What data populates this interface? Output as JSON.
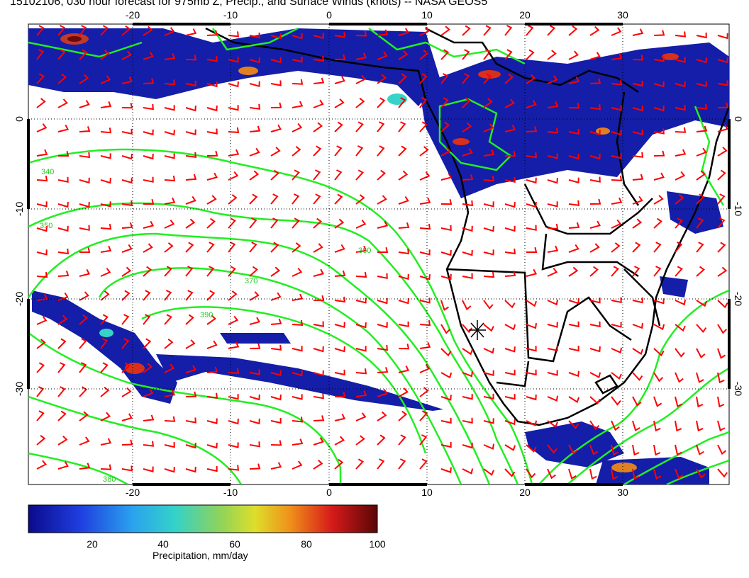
{
  "title": "15102106, 030 hour forecast for 975mb Z, Precip., and Surface Winds (knots) -- NASA GEOS5",
  "map": {
    "lon_ticks": [
      "-20",
      "-10",
      "0",
      "10",
      "20",
      "30"
    ],
    "lat_ticks": [
      "0",
      "-10",
      "-20",
      "-30"
    ],
    "contour_labels": [
      "340",
      "350",
      "360",
      "370",
      "380",
      "390"
    ],
    "contour_color": "#22ee22",
    "wind_barb_color": "#ff0000",
    "coast_color": "#000000",
    "marker": "station-star"
  },
  "colorbar": {
    "label": "Precipitation, mm/day",
    "ticks": [
      "20",
      "40",
      "60",
      "80",
      "100"
    ]
  }
}
